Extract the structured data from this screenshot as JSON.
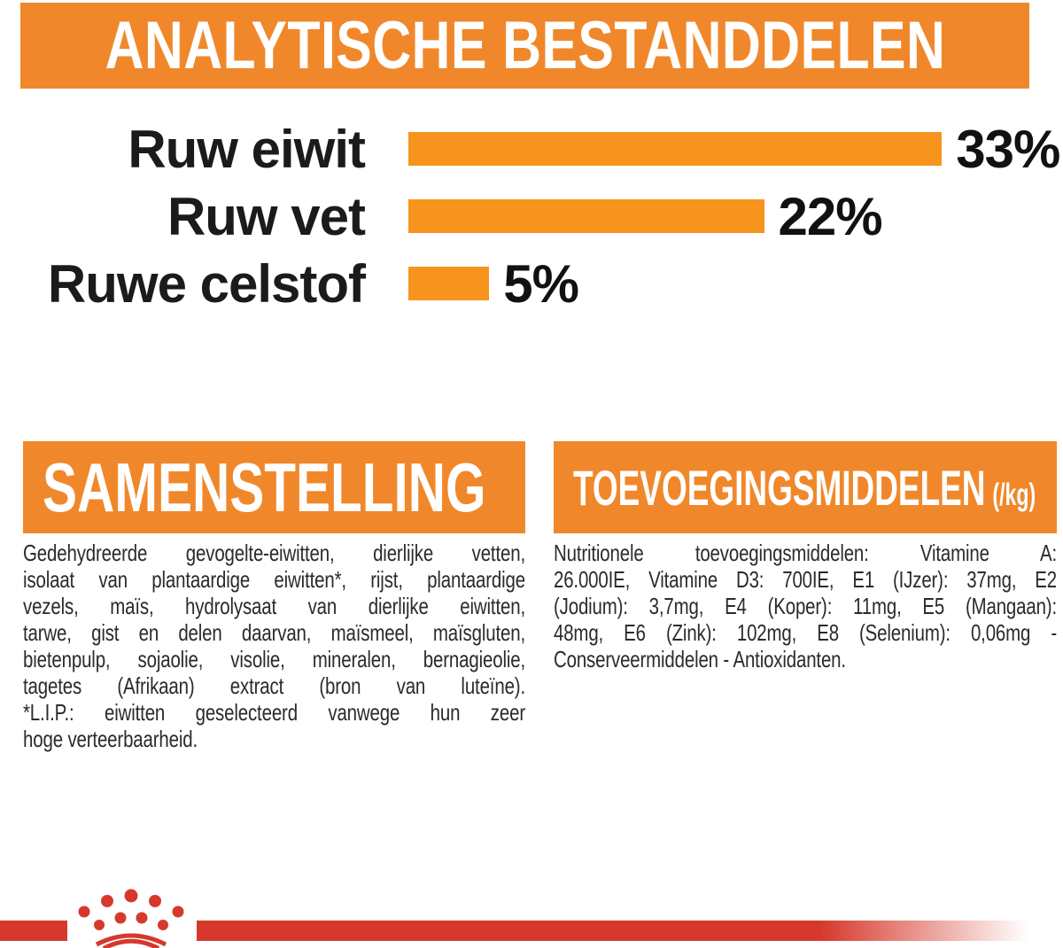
{
  "page": {
    "background": "#FFFFFF",
    "banner_orange": "#F0882B",
    "bar_orange": "#F7941E",
    "brand_red": "#D6392C",
    "text_black": "#1B1B1B"
  },
  "header": {
    "title": "ANALYTISCHE BESTANDDELEN"
  },
  "chart_data": {
    "type": "bar",
    "orientation": "horizontal",
    "title": "ANALYTISCHE BESTANDDELEN",
    "categories": [
      "Ruw eiwit",
      "Ruw vet",
      "Ruwe celstof"
    ],
    "values": [
      33,
      22,
      5
    ],
    "value_labels": [
      "33%",
      "22%",
      "5%"
    ],
    "unit": "%",
    "xlim": [
      0,
      33
    ],
    "bar_color": "#F7941E",
    "grid": false,
    "legend": false
  },
  "sections": {
    "samenstelling": {
      "title": "SAMENSTELLING",
      "lines": [
        "Gedehydreerde gevogelte-eiwitten, dierlijke vetten,",
        "isolaat van plantaardige eiwitten*, rijst, plantaardige",
        "vezels, maïs, hydrolysaat van dierlijke eiwitten,",
        "tarwe, gist en delen daarvan, maïsmeel, maïsgluten,",
        "bietenpulp, sojaolie, visolie, mineralen, bernagieolie,",
        "tagetes (Afrikaan) extract (bron van luteïne).",
        "*L.I.P.: eiwitten geselecteerd vanwege hun zeer",
        "hoge verteerbaarheid."
      ]
    },
    "toevoegingsmiddelen": {
      "title": "TOEVOEGINGSMIDDELEN",
      "unit_suffix": "(/kg)",
      "lines": [
        "Nutritionele toevoegingsmiddelen: Vitamine A:",
        "26.000IE, Vitamine D3: 700IE, E1 (IJzer): 37mg, E2",
        "(Jodium): 3,7mg, E4 (Koper): 11mg, E5 (Mangaan):",
        "48mg, E6 (Zink): 102mg, E8 (Selenium): 0,06mg -",
        "Conserveermiddelen - Antioxidanten."
      ]
    }
  },
  "footer": {
    "logo": "royal-canin-crown"
  }
}
